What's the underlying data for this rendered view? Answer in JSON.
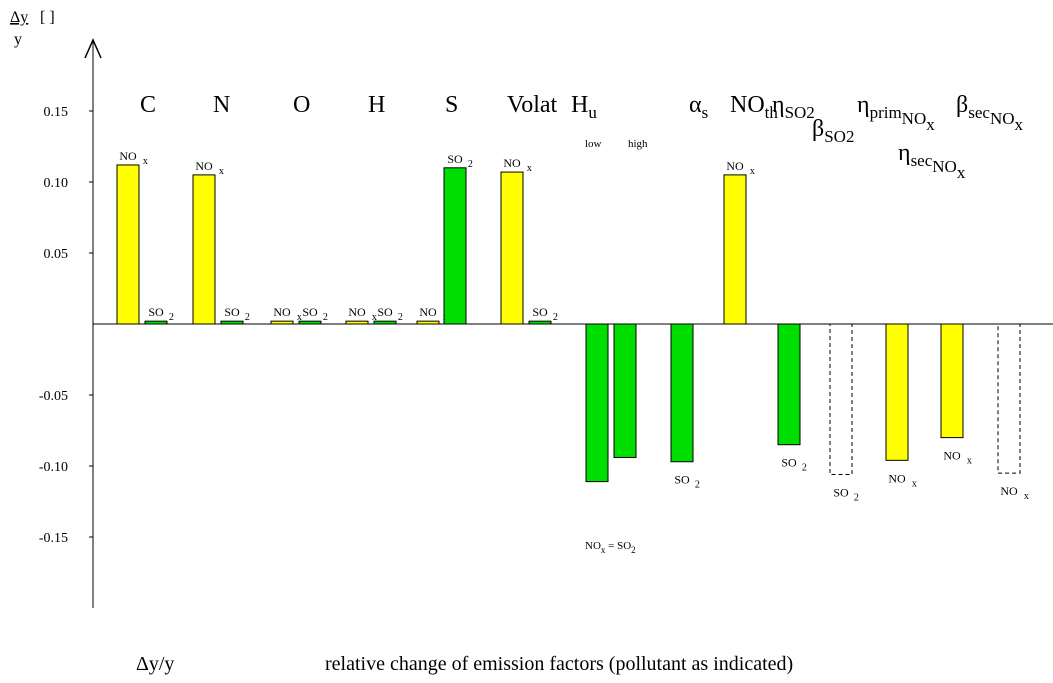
{
  "chart_data": {
    "type": "bar",
    "y_label": {
      "top": "Δy",
      "unit": "[ ]",
      "bottom": "y"
    },
    "footer": {
      "symbol": "Δy/y",
      "text": "relative change of emission factors (pollutant as indicated)"
    },
    "ylim": [
      -0.2,
      0.2
    ],
    "yticks": [
      0.15,
      {
        "value": 0.1,
        "label": "0.10"
      },
      0.05,
      -0.05,
      {
        "value": -0.1,
        "label": "-0.10"
      },
      -0.15
    ],
    "categories": [
      [
        "C"
      ],
      [
        "N"
      ],
      [
        "O"
      ],
      [
        "H"
      ],
      [
        "S"
      ],
      [
        "Volat"
      ],
      [
        "H",
        "u"
      ],
      [
        "α",
        "s"
      ],
      [
        "NO",
        "th"
      ],
      [
        "η",
        "SO",
        "2"
      ],
      [
        "η",
        "prim",
        "NO",
        "x"
      ],
      [
        "β",
        "sec",
        "NO",
        "x"
      ],
      [
        "β",
        "SO",
        "2"
      ],
      [
        "η",
        "sec",
        "NO",
        "x"
      ]
    ],
    "annotations": [
      "low",
      "high",
      [
        "NO",
        "x",
        " = SO",
        "2"
      ]
    ],
    "bars": [
      {
        "value": 0.112,
        "color": "#ffff00",
        "label": [
          "NO",
          "x"
        ]
      },
      {
        "value": 0.002,
        "color": "#00dd00",
        "label": [
          "SO",
          "2"
        ]
      },
      {
        "value": 0.105,
        "color": "#ffff00",
        "label": [
          "NO",
          "x"
        ]
      },
      {
        "value": 0.002,
        "color": "#00dd00",
        "label": [
          "SO",
          "2"
        ]
      },
      {
        "value": 0.002,
        "color": "#ffff00",
        "label": [
          "NO",
          "x"
        ]
      },
      {
        "value": 0.002,
        "color": "#00dd00",
        "label": [
          "SO",
          "2"
        ]
      },
      {
        "value": 0.002,
        "color": "#ffff00",
        "label": [
          "NO",
          "x"
        ]
      },
      {
        "value": 0.002,
        "color": "#00dd00",
        "label": [
          "SO",
          "2"
        ]
      },
      {
        "value": 0.002,
        "color": "#ffff00",
        "label": [
          "NO",
          "x"
        ]
      },
      {
        "value": 0.11,
        "color": "#00dd00",
        "label": [
          "SO",
          "2"
        ]
      },
      {
        "value": 0.107,
        "color": "#ffff00",
        "label": [
          "NO",
          "x"
        ]
      },
      {
        "value": 0.002,
        "color": "#00dd00",
        "label": [
          "SO",
          "2"
        ]
      },
      {
        "value": -0.111,
        "color": "#00dd00"
      },
      {
        "value": -0.094,
        "color": "#00dd00"
      },
      {
        "value": -0.097,
        "color": "#00dd00",
        "label": [
          "SO",
          "2"
        ]
      },
      {
        "value": 0.105,
        "color": "#ffff00",
        "label": [
          "NO",
          "x"
        ]
      },
      {
        "value": -0.085,
        "color": "#00dd00",
        "label": [
          "SO",
          "2"
        ]
      },
      {
        "value": -0.106,
        "color": "none",
        "dashed": true,
        "label": [
          "SO",
          "2"
        ]
      },
      {
        "value": -0.096,
        "color": "#ffff00",
        "label": [
          "NO",
          "x"
        ]
      },
      {
        "value": -0.08,
        "color": "#ffff00",
        "label": [
          "NO",
          "x"
        ]
      },
      {
        "value": -0.105,
        "color": "none",
        "dashed": true,
        "label": [
          "NO",
          "x"
        ]
      }
    ]
  }
}
